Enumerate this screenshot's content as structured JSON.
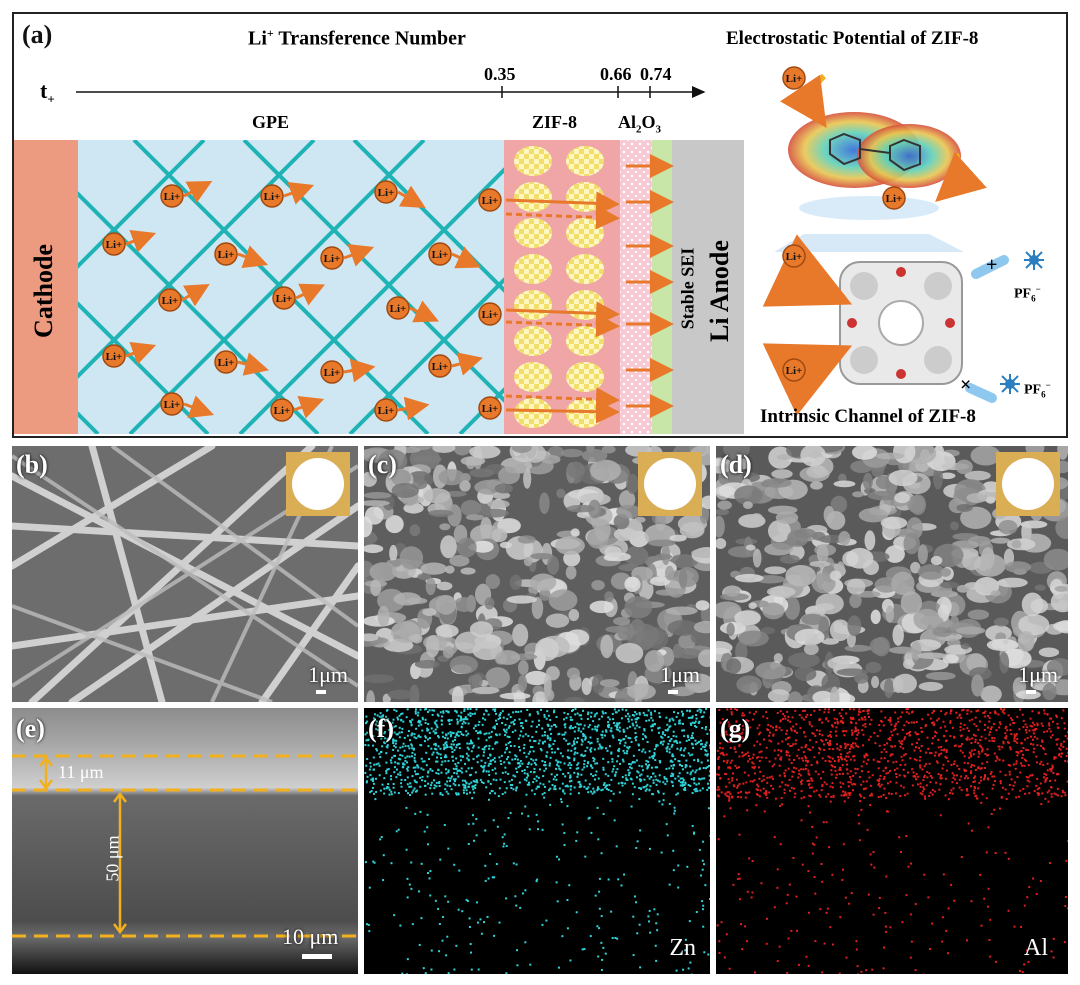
{
  "panel_a": {
    "label": "(a)",
    "title_main": "Li",
    "title_sup": "+",
    "title_rest": " Transference Number",
    "axis_sym": "t",
    "axis_sub": "+",
    "ticks": [
      "0.35",
      "0.66",
      "0.74"
    ],
    "layer_gpe": "GPE",
    "layer_zif": "ZIF-8",
    "layer_al_main": "Al",
    "layer_al_sub1": "2",
    "layer_al_mid": "O",
    "layer_al_sub2": "3",
    "cathode": "Cathode",
    "anode": "Li Anode",
    "sei": "Stable SEI",
    "ion": "Li",
    "ion_sup": "+",
    "esp_title": "Electrostatic Potential of ZIF-8",
    "channel_title": "Intrinsic Channel of ZIF-8",
    "pf6": "PF",
    "pf6_sub": "6",
    "pf6_sup": "−",
    "plus": "+",
    "cross": "×",
    "colors": {
      "cathode": "#ec9a80",
      "gpe": "#cfe6f3",
      "mesh": "#1fb3b5",
      "zif": "#f0a6a6",
      "al2o3": "#f5c7d3",
      "sei": "#c8e6a8",
      "anode": "#c8c8c8",
      "ion": "#e8782a",
      "arrow": "#e8782a"
    }
  },
  "panel_b": {
    "label": "(b)",
    "scale": "1μm"
  },
  "panel_c": {
    "label": "(c)",
    "scale": "1μm"
  },
  "panel_d": {
    "label": "(d)",
    "scale": "1μm"
  },
  "panel_e": {
    "label": "(e)",
    "thick_top": "11 μm",
    "thick_bottom": "50 μm",
    "scale": "10 μm"
  },
  "panel_f": {
    "label": "(f)",
    "element": "Zn"
  },
  "panel_g": {
    "label": "(g)",
    "element": "Al"
  }
}
